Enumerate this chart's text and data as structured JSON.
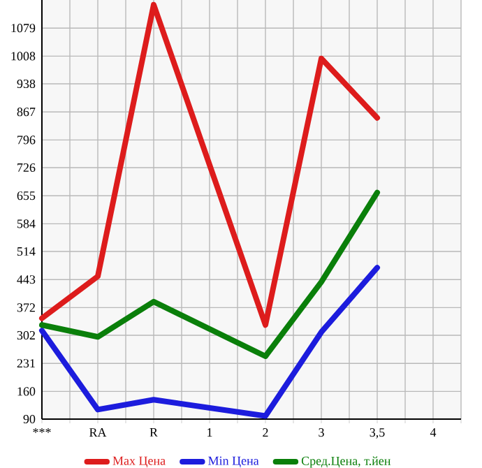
{
  "chart_data": {
    "type": "line",
    "categories": [
      "***",
      "RA",
      "R",
      "1",
      "2",
      "3",
      "3,5",
      "4"
    ],
    "series": [
      {
        "name": "Max Цена",
        "color": "#dd1c1c",
        "values": [
          345,
          451,
          1138,
          null,
          328,
          1002,
          852,
          null
        ]
      },
      {
        "name": "Min Цена",
        "color": "#1c1cdd",
        "values": [
          314,
          114,
          139,
          null,
          98,
          310,
          473,
          null
        ]
      },
      {
        "name": "Сред.Цена, т.йен",
        "color": "#0a7f0a",
        "values": [
          328,
          298,
          387,
          null,
          249,
          437,
          663,
          null
        ]
      }
    ],
    "ylim": [
      90,
      1150
    ],
    "yticks": [
      90,
      160,
      231,
      302,
      372,
      443,
      514,
      584,
      655,
      726,
      796,
      867,
      938,
      1008,
      1079
    ],
    "grid": true,
    "legend": "bottom",
    "marker": "none",
    "line_style": "solid"
  }
}
